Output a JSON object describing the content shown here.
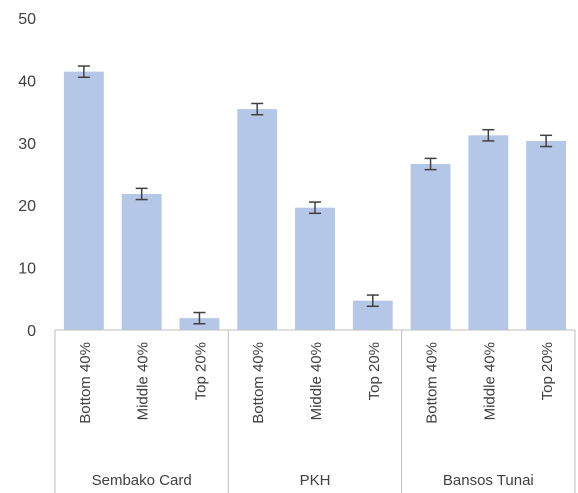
{
  "chart_data": {
    "type": "bar",
    "title": "",
    "xlabel": "",
    "ylabel": "",
    "ylim": [
      0,
      50
    ],
    "yticks": [
      "0",
      "10",
      "20",
      "30",
      "40",
      "50"
    ],
    "grid": false,
    "legend": "none",
    "bar_color": "#b4c7e7",
    "error_bar_color": "#404040",
    "groups": [
      {
        "name": "Sembako Card",
        "categories": [
          "Bottom 40%",
          "Middle 40%",
          "Top 20%"
        ],
        "values": [
          41.4,
          21.8,
          1.9
        ],
        "errors": [
          0.9,
          0.9,
          0.9
        ]
      },
      {
        "name": "PKH",
        "categories": [
          "Bottom 40%",
          "Middle 40%",
          "Top 20%"
        ],
        "values": [
          35.4,
          19.6,
          4.7
        ],
        "errors": [
          0.9,
          0.9,
          0.9
        ]
      },
      {
        "name": "Bansos Tunai",
        "categories": [
          "Bottom 40%",
          "Middle 40%",
          "Top 20%"
        ],
        "values": [
          26.6,
          31.2,
          30.3
        ],
        "errors": [
          0.9,
          0.9,
          0.9
        ]
      }
    ]
  }
}
